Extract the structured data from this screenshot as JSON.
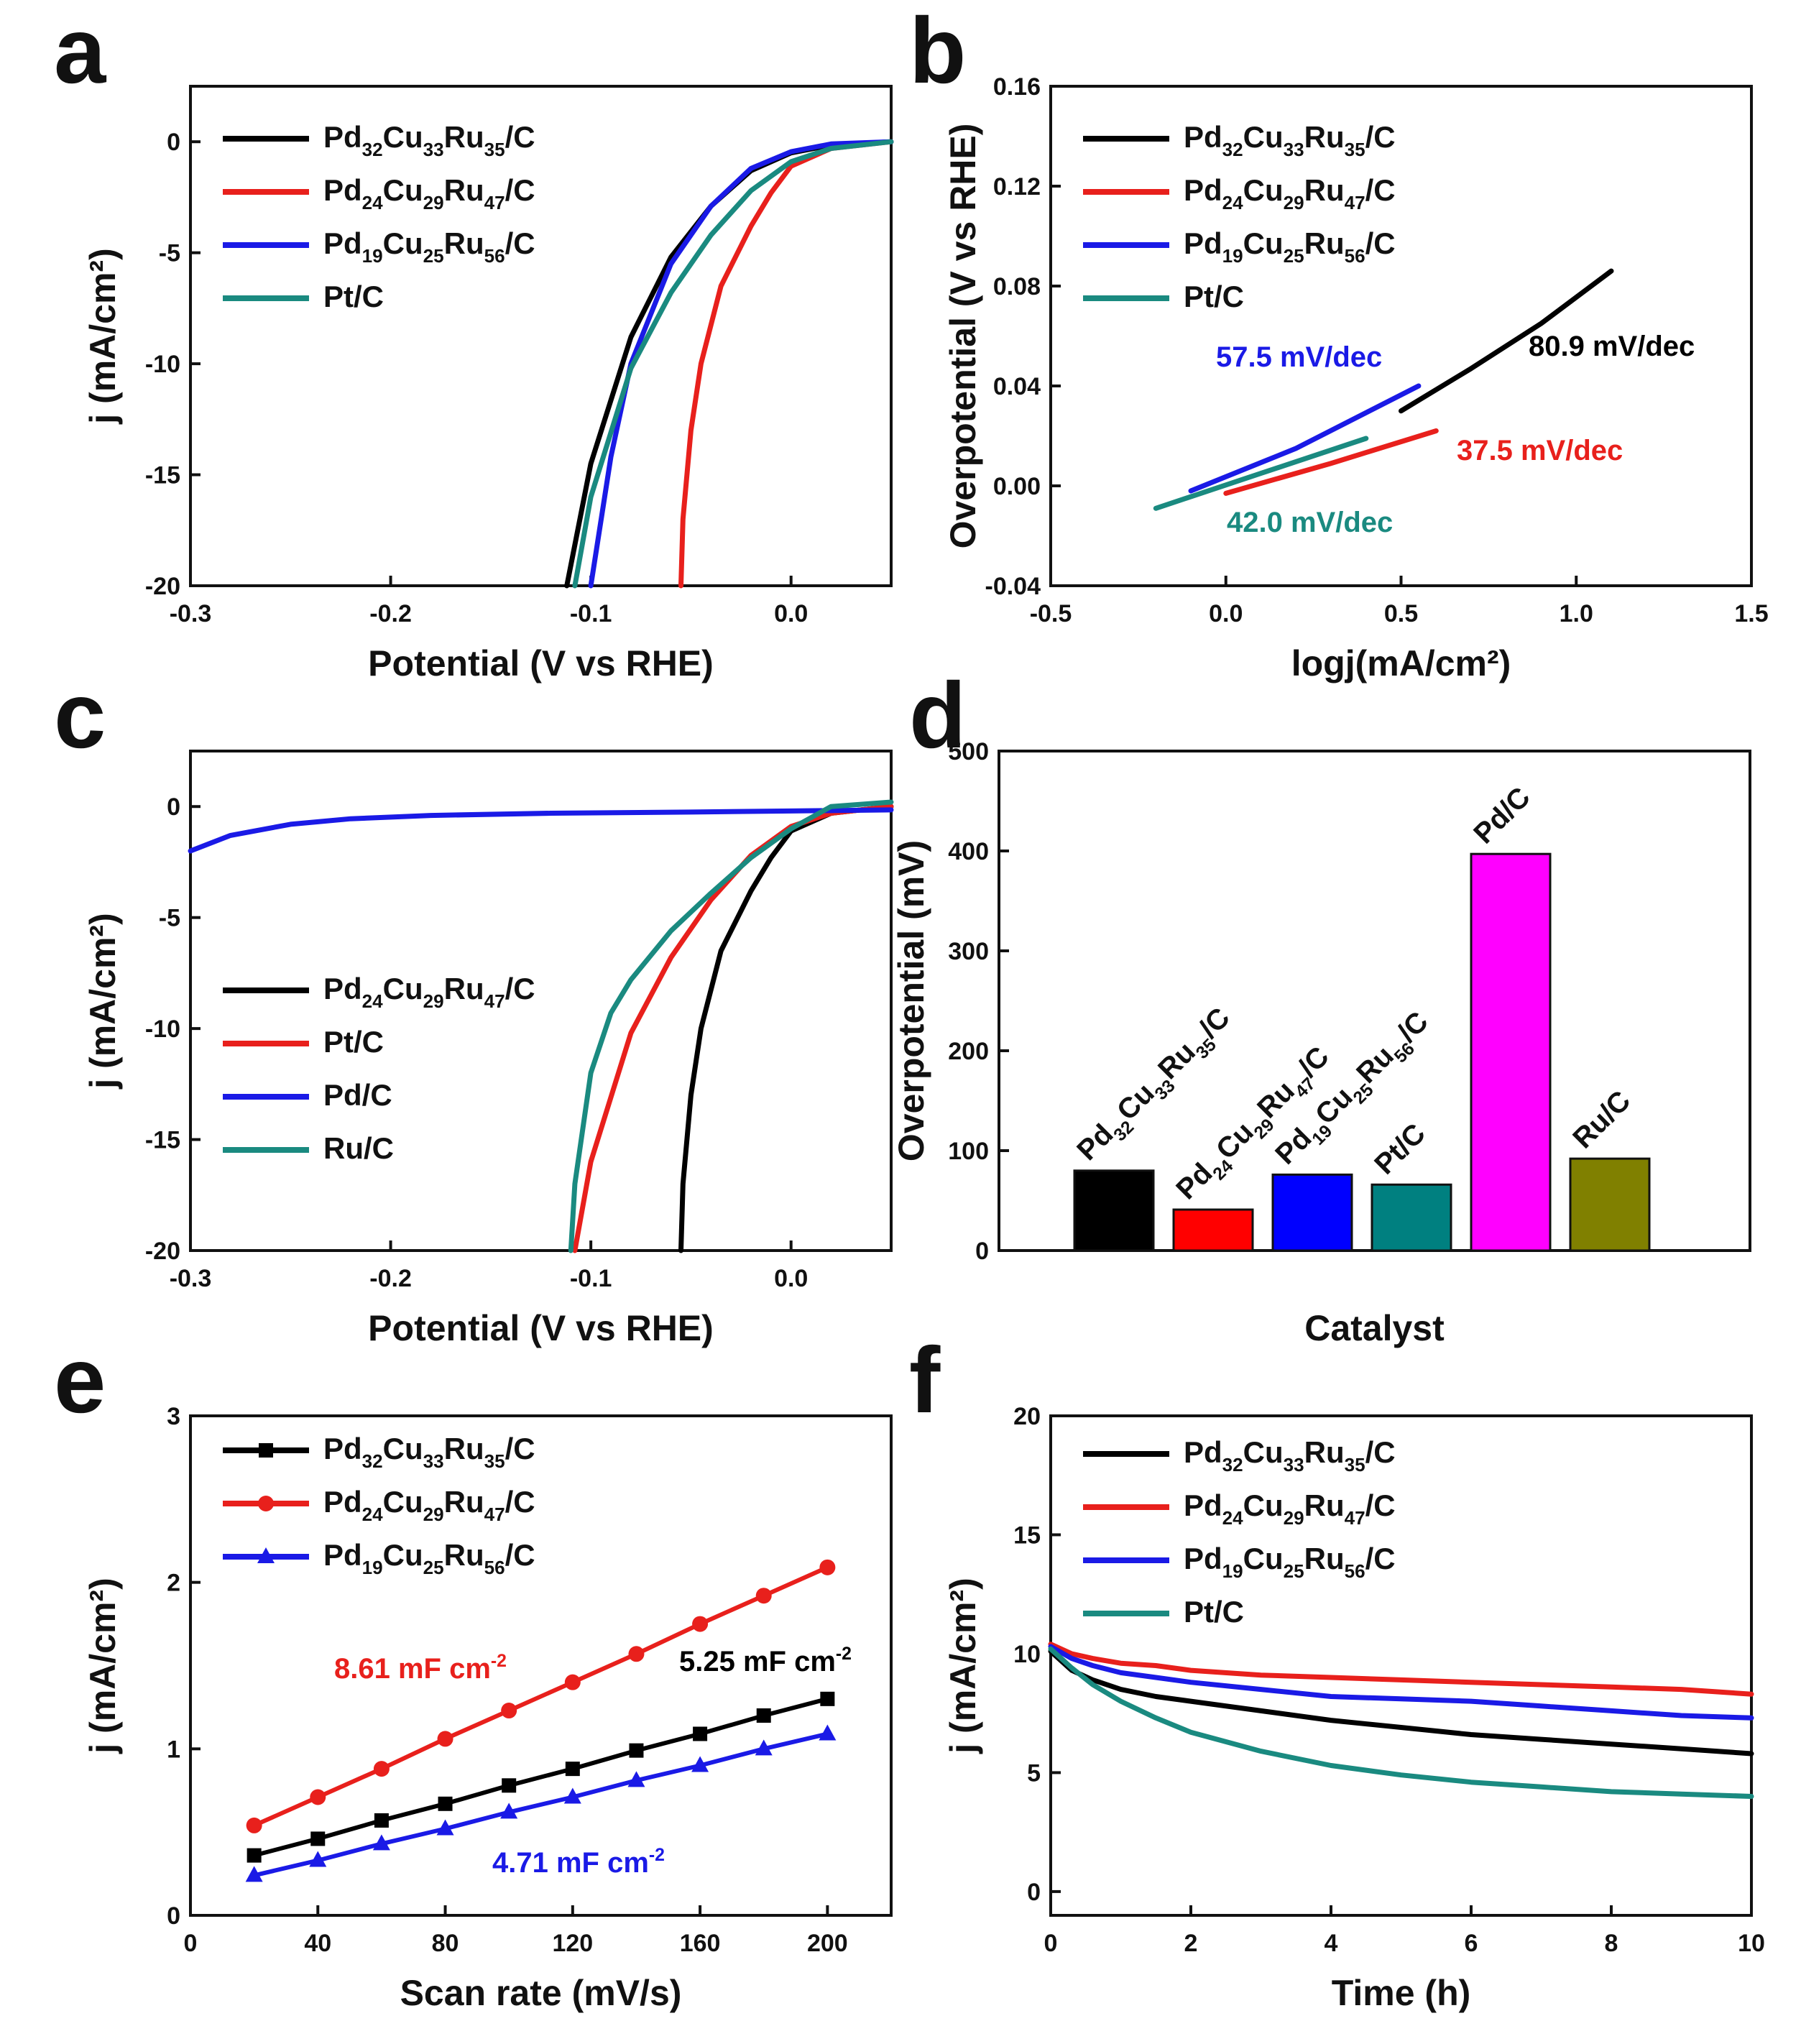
{
  "figure": {
    "type": "multi-panel scientific figure"
  },
  "chart_data": [
    {
      "panel": "a",
      "type": "line",
      "xlabel": "Potential (V vs RHE)",
      "ylabel": "j (mA/cm²)",
      "xlim": [
        -0.3,
        0.05
      ],
      "ylim": [
        -20,
        2.5
      ],
      "xticks": [
        -0.3,
        -0.2,
        -0.1,
        0.0
      ],
      "xtick_labels": [
        "-0.3",
        "-0.2",
        "-0.1",
        "0.0"
      ],
      "yticks": [
        0,
        -5,
        -10,
        -15,
        -20
      ],
      "ytick_labels": [
        "0",
        "-5",
        "-10",
        "-15",
        "-20"
      ],
      "legend": "top-left",
      "series": [
        {
          "name": "Pd32Cu33Ru35/C",
          "base": "Pd",
          "subs": [
            "32",
            "33",
            "35"
          ],
          "color": "#000000",
          "x": [
            -0.112,
            -0.1,
            -0.08,
            -0.06,
            -0.04,
            -0.02,
            0.0,
            0.02,
            0.05
          ],
          "y": [
            -20,
            -14.5,
            -8.8,
            -5.2,
            -2.9,
            -1.3,
            -0.5,
            -0.15,
            0
          ]
        },
        {
          "name": "Pd24Cu29Ru47/C",
          "base": "Pd",
          "subs": [
            "24",
            "29",
            "47"
          ],
          "color": "#e8201c",
          "x": [
            -0.055,
            -0.054,
            -0.05,
            -0.045,
            -0.035,
            -0.02,
            -0.01,
            0.0,
            0.02,
            0.05
          ],
          "y": [
            -20,
            -17,
            -13,
            -10,
            -6.5,
            -3.8,
            -2.3,
            -1.1,
            -0.3,
            0
          ]
        },
        {
          "name": "Pd19Cu25Ru56/C",
          "base": "Pd",
          "subs": [
            "19",
            "25",
            "56"
          ],
          "color": "#1a1ae6",
          "x": [
            -0.1,
            -0.09,
            -0.08,
            -0.06,
            -0.04,
            -0.02,
            0.0,
            0.02,
            0.05
          ],
          "y": [
            -20,
            -14.2,
            -10,
            -5.5,
            -2.9,
            -1.2,
            -0.45,
            -0.1,
            0
          ]
        },
        {
          "name": "Pt/C",
          "base": "Pt/C",
          "subs": [],
          "color": "#1a8a80",
          "x": [
            -0.108,
            -0.1,
            -0.08,
            -0.06,
            -0.04,
            -0.02,
            0.0,
            0.02,
            0.05
          ],
          "y": [
            -20,
            -16,
            -10.2,
            -6.8,
            -4.2,
            -2.2,
            -0.9,
            -0.3,
            0
          ]
        }
      ]
    },
    {
      "panel": "b",
      "type": "line",
      "xlabel": "logj(mA/cm²)",
      "ylabel": "Overpotential (V vs RHE)",
      "xlim": [
        -0.5,
        1.5
      ],
      "ylim": [
        -0.04,
        0.16
      ],
      "xticks": [
        -0.5,
        0.0,
        0.5,
        1.0,
        1.5
      ],
      "xtick_labels": [
        "-0.5",
        "0.0",
        "0.5",
        "1.0",
        "1.5"
      ],
      "yticks": [
        -0.04,
        0.0,
        0.04,
        0.08,
        0.12,
        0.16
      ],
      "ytick_labels": [
        "-0.04",
        "0.00",
        "0.04",
        "0.08",
        "0.12",
        "0.16"
      ],
      "legend": "top-left",
      "series": [
        {
          "name": "Pd32Cu33Ru35/C",
          "base": "Pd",
          "subs": [
            "32",
            "33",
            "35"
          ],
          "color": "#000000",
          "x": [
            0.5,
            0.7,
            0.9,
            1.1
          ],
          "y": [
            0.03,
            0.047,
            0.065,
            0.086
          ],
          "tafel": "80.9 mV/dec"
        },
        {
          "name": "Pd24Cu29Ru47/C",
          "base": "Pd",
          "subs": [
            "24",
            "29",
            "47"
          ],
          "color": "#e8201c",
          "x": [
            0.0,
            0.3,
            0.6
          ],
          "y": [
            -0.003,
            0.009,
            0.022
          ],
          "tafel": "37.5 mV/dec"
        },
        {
          "name": "Pd19Cu25Ru56/C",
          "base": "Pd",
          "subs": [
            "19",
            "25",
            "56"
          ],
          "color": "#1a1ae6",
          "x": [
            -0.1,
            0.2,
            0.55
          ],
          "y": [
            -0.002,
            0.015,
            0.04
          ],
          "tafel": "57.5 mV/dec"
        },
        {
          "name": "Pt/C",
          "base": "Pt/C",
          "subs": [],
          "color": "#1a8a80",
          "x": [
            -0.2,
            0.1,
            0.4
          ],
          "y": [
            -0.009,
            0.005,
            0.019
          ],
          "tafel": "42.0 mV/dec"
        }
      ]
    },
    {
      "panel": "c",
      "type": "line",
      "xlabel": "Potential (V vs RHE)",
      "ylabel": "j (mA/cm²)",
      "xlim": [
        -0.3,
        0.05
      ],
      "ylim": [
        -20,
        2.5
      ],
      "xticks": [
        -0.3,
        -0.2,
        -0.1,
        0.0
      ],
      "xtick_labels": [
        "-0.3",
        "-0.2",
        "-0.1",
        "0.0"
      ],
      "yticks": [
        0,
        -5,
        -10,
        -15,
        -20
      ],
      "ytick_labels": [
        "0",
        "-5",
        "-10",
        "-15",
        "-20"
      ],
      "legend": "center-left",
      "series": [
        {
          "name": "Pd24Cu29Ru47/C",
          "base": "Pd",
          "subs": [
            "24",
            "29",
            "47"
          ],
          "color": "#000000",
          "x": [
            -0.055,
            -0.054,
            -0.05,
            -0.045,
            -0.035,
            -0.02,
            -0.01,
            0.0,
            0.02,
            0.05
          ],
          "y": [
            -20,
            -17,
            -13,
            -10,
            -6.5,
            -3.8,
            -2.3,
            -1.1,
            -0.3,
            0
          ]
        },
        {
          "name": "Pt/C",
          "base": "Pt/C",
          "subs": [],
          "color": "#e8201c",
          "x": [
            -0.108,
            -0.1,
            -0.08,
            -0.06,
            -0.04,
            -0.02,
            0.0,
            0.02,
            0.05
          ],
          "y": [
            -20,
            -16,
            -10.2,
            -6.8,
            -4.2,
            -2.2,
            -0.9,
            -0.3,
            0
          ]
        },
        {
          "name": "Pd/C",
          "base": "Pd/C",
          "subs": [],
          "color": "#1a1ae6",
          "x": [
            -0.3,
            -0.28,
            -0.25,
            -0.22,
            -0.18,
            -0.12,
            -0.05,
            0.0,
            0.05
          ],
          "y": [
            -2.0,
            -1.3,
            -0.8,
            -0.55,
            -0.4,
            -0.3,
            -0.25,
            -0.2,
            -0.15
          ]
        },
        {
          "name": "Ru/C",
          "base": "Ru/C",
          "subs": [],
          "color": "#1a8a80",
          "x": [
            -0.11,
            -0.108,
            -0.1,
            -0.09,
            -0.08,
            -0.06,
            -0.04,
            -0.02,
            0.0,
            0.02,
            0.05
          ],
          "y": [
            -20,
            -17,
            -12,
            -9.3,
            -7.8,
            -5.6,
            -3.9,
            -2.3,
            -1.0,
            0,
            0.2
          ]
        }
      ]
    },
    {
      "panel": "d",
      "type": "bar",
      "xlabel": "Catalyst",
      "ylabel": "Overpotential (mV)",
      "ylim": [
        0,
        500
      ],
      "yticks": [
        0,
        100,
        200,
        300,
        400,
        500
      ],
      "ytick_labels": [
        "0",
        "100",
        "200",
        "300",
        "400",
        "500"
      ],
      "categories": [
        {
          "name": "Pd32Cu33Ru35/C",
          "base": "Pd",
          "subs": [
            "32",
            "33",
            "35"
          ]
        },
        {
          "name": "Pd24Cu29Ru47/C",
          "base": "Pd",
          "subs": [
            "24",
            "29",
            "47"
          ]
        },
        {
          "name": "Pd19Cu25Ru56/C",
          "base": "Pd",
          "subs": [
            "19",
            "25",
            "56"
          ]
        },
        {
          "name": "Pt/C",
          "base": "Pt/C",
          "subs": []
        },
        {
          "name": "Pd/C",
          "base": "Pd/C",
          "subs": []
        },
        {
          "name": "Ru/C",
          "base": "Ru/C",
          "subs": []
        }
      ],
      "values": [
        80,
        41,
        76,
        66,
        397,
        92
      ],
      "colors": [
        "#000000",
        "#ff0000",
        "#0000ff",
        "#008080",
        "#ff00ff",
        "#808000"
      ]
    },
    {
      "panel": "e",
      "type": "scatter",
      "xlabel": "Scan rate (mV/s)",
      "ylabel": "j (mA/cm²)",
      "xlim": [
        0,
        220
      ],
      "ylim": [
        0,
        3
      ],
      "xticks": [
        0,
        40,
        80,
        120,
        160,
        200
      ],
      "xtick_labels": [
        "0",
        "40",
        "80",
        "120",
        "160",
        "200"
      ],
      "yticks": [
        0,
        1,
        2,
        3
      ],
      "ytick_labels": [
        "0",
        "1",
        "2",
        "3"
      ],
      "legend": "top-left",
      "series": [
        {
          "name": "Pd32Cu33Ru35/C",
          "base": "Pd",
          "subs": [
            "32",
            "33",
            "35"
          ],
          "color": "#000000",
          "marker": "square",
          "x": [
            20,
            40,
            60,
            80,
            100,
            120,
            140,
            160,
            180,
            200
          ],
          "y": [
            0.36,
            0.46,
            0.57,
            0.67,
            0.78,
            0.88,
            0.99,
            1.09,
            1.2,
            1.3
          ],
          "capacitance": "5.25 mF cm",
          "cap_exp": "-2"
        },
        {
          "name": "Pd24Cu29Ru47/C",
          "base": "Pd",
          "subs": [
            "24",
            "29",
            "47"
          ],
          "color": "#e8201c",
          "marker": "circle",
          "x": [
            20,
            40,
            60,
            80,
            100,
            120,
            140,
            160,
            180,
            200
          ],
          "y": [
            0.54,
            0.71,
            0.88,
            1.06,
            1.23,
            1.4,
            1.57,
            1.75,
            1.92,
            2.09
          ],
          "capacitance": "8.61 mF cm",
          "cap_exp": "-2"
        },
        {
          "name": "Pd19Cu25Ru56/C",
          "base": "Pd",
          "subs": [
            "19",
            "25",
            "56"
          ],
          "color": "#1a1ae6",
          "marker": "triangle",
          "x": [
            20,
            40,
            60,
            80,
            100,
            120,
            140,
            160,
            180,
            200
          ],
          "y": [
            0.24,
            0.33,
            0.43,
            0.52,
            0.62,
            0.71,
            0.81,
            0.9,
            1.0,
            1.09
          ],
          "capacitance": "4.71 mF cm",
          "cap_exp": "-2"
        }
      ]
    },
    {
      "panel": "f",
      "type": "line",
      "xlabel": "Time (h)",
      "ylabel": "j (mA/cm²)",
      "xlim": [
        0,
        10
      ],
      "ylim": [
        -1,
        20
      ],
      "xticks": [
        0,
        2,
        4,
        6,
        8,
        10
      ],
      "xtick_labels": [
        "0",
        "2",
        "4",
        "6",
        "8",
        "10"
      ],
      "yticks": [
        0,
        5,
        10,
        15,
        20
      ],
      "ytick_labels": [
        "0",
        "5",
        "10",
        "15",
        "20"
      ],
      "legend": "top-left",
      "series": [
        {
          "name": "Pd32Cu33Ru35/C",
          "base": "Pd",
          "subs": [
            "32",
            "33",
            "35"
          ],
          "color": "#000000",
          "x": [
            0,
            0.3,
            0.6,
            1,
            1.5,
            2,
            3,
            4,
            5,
            6,
            7,
            8,
            9,
            10
          ],
          "y": [
            10.1,
            9.3,
            8.9,
            8.5,
            8.2,
            8.0,
            7.6,
            7.2,
            6.9,
            6.6,
            6.4,
            6.2,
            6.0,
            5.8
          ]
        },
        {
          "name": "Pd24Cu29Ru47/C",
          "base": "Pd",
          "subs": [
            "24",
            "29",
            "47"
          ],
          "color": "#e8201c",
          "x": [
            0,
            0.3,
            0.6,
            1,
            1.5,
            2,
            3,
            4,
            5,
            6,
            7,
            8,
            9,
            10
          ],
          "y": [
            10.4,
            10.0,
            9.8,
            9.6,
            9.5,
            9.3,
            9.1,
            9.0,
            8.9,
            8.8,
            8.7,
            8.6,
            8.5,
            8.3
          ]
        },
        {
          "name": "Pd19Cu25Ru56/C",
          "base": "Pd",
          "subs": [
            "19",
            "25",
            "56"
          ],
          "color": "#1a1ae6",
          "x": [
            0,
            0.3,
            0.6,
            1,
            1.5,
            2,
            3,
            4,
            5,
            6,
            7,
            8,
            9,
            10
          ],
          "y": [
            10.3,
            9.8,
            9.5,
            9.2,
            9.0,
            8.8,
            8.5,
            8.2,
            8.1,
            8.0,
            7.8,
            7.6,
            7.4,
            7.3
          ]
        },
        {
          "name": "Pt/C",
          "base": "Pt/C",
          "subs": [],
          "color": "#1a8a80",
          "x": [
            0,
            0.3,
            0.6,
            1,
            1.5,
            2,
            3,
            4,
            5,
            6,
            7,
            8,
            9,
            10
          ],
          "y": [
            10.2,
            9.4,
            8.7,
            8.0,
            7.3,
            6.7,
            5.9,
            5.3,
            4.9,
            4.6,
            4.4,
            4.2,
            4.1,
            4.0
          ]
        }
      ]
    }
  ]
}
